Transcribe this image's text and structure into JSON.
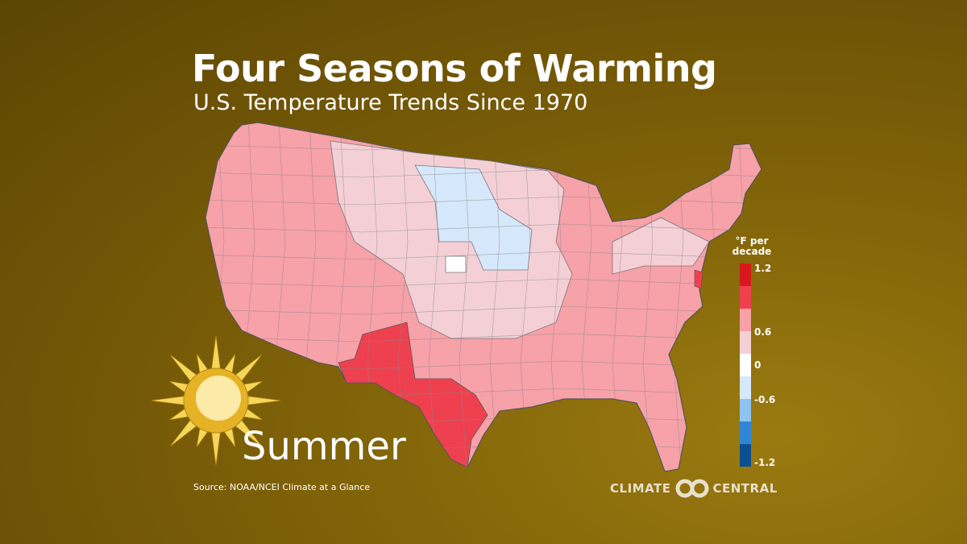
{
  "header": {
    "title": "Four Seasons of Warming",
    "subtitle": "U.S. Temperature Trends Since 1970"
  },
  "season_label": "Summer",
  "season_icon": "sun-icon",
  "source": "Source:  NOAA/NCEI Climate at a Glance",
  "legend": {
    "title_line1": "°F per",
    "title_line2": "decade",
    "colors": [
      "#d7191c",
      "#ef4050",
      "#f7a1a8",
      "#f4d0d6",
      "#ffffff",
      "#d6e8fb",
      "#8fc3f2",
      "#2f86d6",
      "#0b4f92"
    ],
    "ticks": [
      "1.2",
      "0.6",
      "0",
      "-0.6",
      "-1.2"
    ]
  },
  "map_colors": {
    "base": "#f7a1a8",
    "light": "#f4d0d6",
    "hot": "#ef4050",
    "cool": "#d6e8fb",
    "neutral": "#ffffff"
  },
  "logo": {
    "left": "CLIMATE",
    "right": "CENTRAL"
  }
}
